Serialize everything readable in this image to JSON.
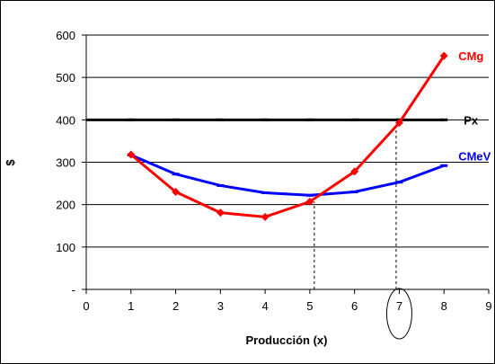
{
  "chart_data": {
    "type": "line",
    "title": "",
    "xlabel": "Producción (x)",
    "ylabel": "$",
    "xlim": [
      0,
      9
    ],
    "ylim": [
      0,
      600
    ],
    "x_ticks": [
      0,
      1,
      2,
      3,
      4,
      5,
      6,
      7,
      8,
      9
    ],
    "y_ticks": [
      {
        "value": 0,
        "label": "-"
      },
      {
        "value": 100,
        "label": "100"
      },
      {
        "value": 200,
        "label": "200"
      },
      {
        "value": 300,
        "label": "300"
      },
      {
        "value": 400,
        "label": "400"
      },
      {
        "value": 500,
        "label": "500"
      },
      {
        "value": 600,
        "label": "600"
      }
    ],
    "grid": "horizontal",
    "series": [
      {
        "name": "Px",
        "color": "#000000",
        "marker": "dash",
        "x": [
          1,
          2,
          3,
          4,
          5,
          6,
          7,
          8
        ],
        "values": [
          400,
          400,
          400,
          400,
          400,
          400,
          400,
          400
        ],
        "extended_x": [
          0,
          8
        ]
      },
      {
        "name": "CMeV",
        "color": "#0000ff",
        "marker": "dash",
        "x": [
          1,
          2,
          3,
          4,
          5,
          6,
          7,
          8
        ],
        "values": [
          317,
          272,
          245,
          228,
          222,
          230,
          253,
          292
        ]
      },
      {
        "name": "CMg",
        "color": "#ff0000",
        "marker": "diamond",
        "x": [
          1,
          2,
          3,
          4,
          5,
          6,
          7,
          8
        ],
        "values": [
          318,
          230,
          181,
          171,
          207,
          278,
          393,
          551
        ]
      }
    ],
    "annotations": [
      {
        "type": "vertical-dashed-line",
        "x": 5.1,
        "from": 0,
        "to": 207
      },
      {
        "type": "vertical-dashed-line",
        "x": 6.93,
        "from": 0,
        "to": 393
      },
      {
        "type": "ellipse-highlight",
        "target": "x-tick",
        "value": 7
      }
    ]
  }
}
